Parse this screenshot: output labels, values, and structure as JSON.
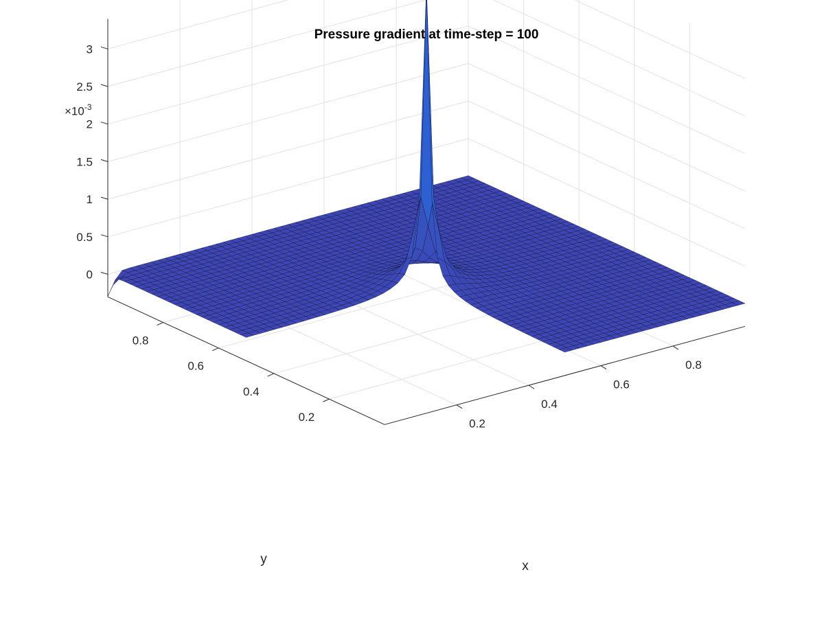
{
  "figure": {
    "title": "Pressure gradient at time-step = 100",
    "z_multiplier_base": "×10",
    "z_multiplier_exp": "-3"
  },
  "chart_data": {
    "type": "surface",
    "title": "Pressure gradient at time-step = 100",
    "xlabel": "x",
    "ylabel": "y",
    "zlabel": "",
    "xlim": [
      0,
      1
    ],
    "ylim": [
      0,
      1
    ],
    "zlim": [
      -0.3,
      3.4
    ],
    "z_scale_exponent": -3,
    "grid": true,
    "colormap_color": "#3d46b4",
    "peak_color": "#1a72f0",
    "x_ticks": [
      {
        "value": 0.2,
        "label": "0.2"
      },
      {
        "value": 0.4,
        "label": "0.4"
      },
      {
        "value": 0.6,
        "label": "0.6"
      },
      {
        "value": 0.8,
        "label": "0.8"
      }
    ],
    "y_ticks": [
      {
        "value": 0.2,
        "label": "0.2"
      },
      {
        "value": 0.4,
        "label": "0.4"
      },
      {
        "value": 0.6,
        "label": "0.6"
      },
      {
        "value": 0.8,
        "label": "0.8"
      }
    ],
    "z_ticks": [
      {
        "value": 0,
        "label": "0"
      },
      {
        "value": 0.5,
        "label": "0.5"
      },
      {
        "value": 1,
        "label": "1"
      },
      {
        "value": 1.5,
        "label": "1.5"
      },
      {
        "value": 2,
        "label": "2"
      },
      {
        "value": 2.5,
        "label": "2.5"
      },
      {
        "value": 3,
        "label": "3"
      }
    ],
    "domain": "L-shaped region (unit square minus the quadrant x<0.5, y<0.5)",
    "surface_level": 0,
    "peak": {
      "x": 0.5,
      "y": 0.5,
      "z": 4.1
    },
    "samples": [
      {
        "x": 0.0,
        "y": 1.0,
        "z": -0.3
      },
      {
        "x": 0.05,
        "y": 0.95,
        "z": 0.0
      },
      {
        "x": 0.45,
        "y": 0.55,
        "z": 0.05
      },
      {
        "x": 0.5,
        "y": 0.5,
        "z": 4.1
      },
      {
        "x": 0.55,
        "y": 0.55,
        "z": 0.2
      },
      {
        "x": 1.0,
        "y": 0.0,
        "z": 0.0
      },
      {
        "x": 0.5,
        "y": 0.0,
        "z": 0.0
      },
      {
        "x": 0.0,
        "y": 0.5,
        "z": 0.0
      }
    ]
  }
}
